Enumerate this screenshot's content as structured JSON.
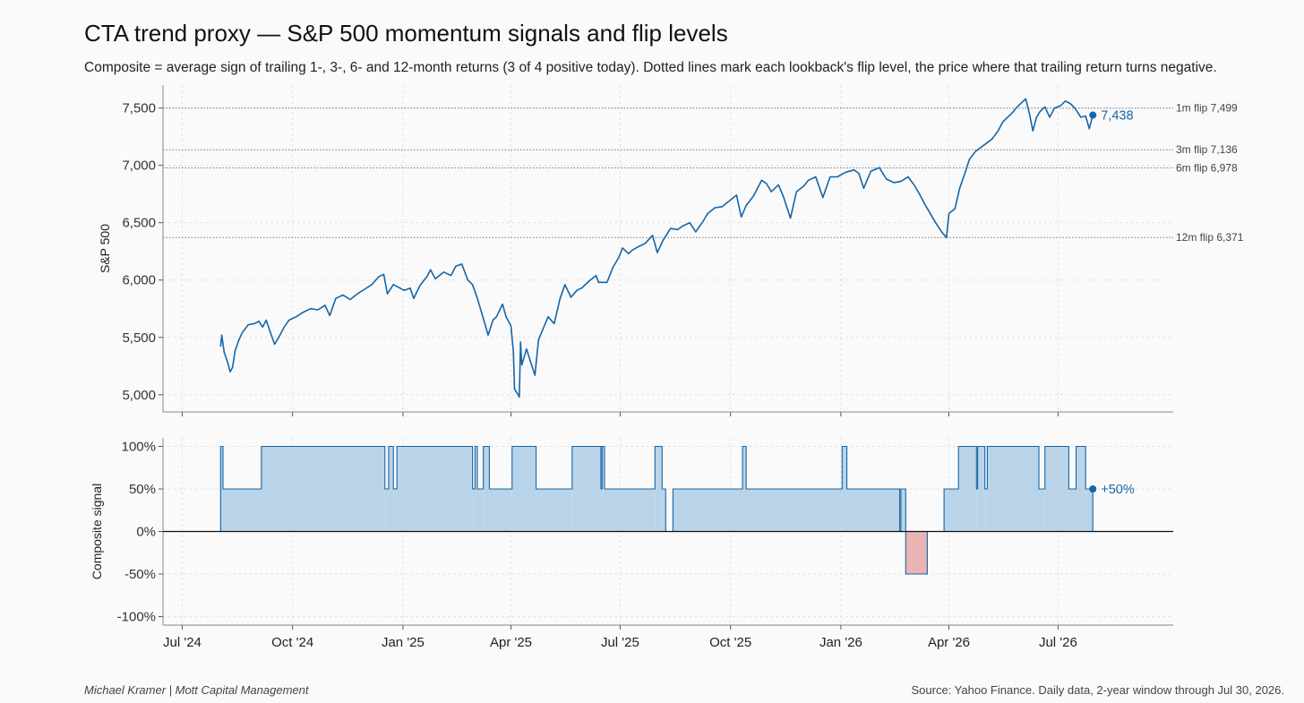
{
  "title": "CTA trend proxy — S&P 500 momentum signals and flip levels",
  "subtitle": "Composite = average sign of trailing 1-, 3-, 6- and 12-month returns (3 of 4 positive today). Dotted lines mark each lookback's flip level, the price where that trailing return turns negative.",
  "footer_left": "Michael Kramer  |  Mott Capital Management",
  "footer_right": "Source: Yahoo Finance. Daily data, 2-year window through Jul 30, 2026.",
  "colors": {
    "line": "#1565a8",
    "positive_fill": "#b9d4e8",
    "negative_fill": "#eab4b4",
    "grid": "#e3e3e3",
    "flip_line": "#777777"
  },
  "chart_data": [
    {
      "type": "line",
      "ylabel": "S&P 500",
      "ylim": [
        4850,
        7700
      ],
      "yticks": [
        "5,000",
        "5,500",
        "6,000",
        "6,500",
        "7,000",
        "7,500"
      ],
      "ytick_values": [
        5000,
        5500,
        6000,
        6500,
        7000,
        7500
      ],
      "series": [
        {
          "values": [
            [
              "2024-08-02",
              5420
            ],
            [
              "2024-08-03",
              5520
            ],
            [
              "2024-08-05",
              5370
            ],
            [
              "2024-08-08",
              5280
            ],
            [
              "2024-08-10",
              5200
            ],
            [
              "2024-08-12",
              5240
            ],
            [
              "2024-08-14",
              5380
            ],
            [
              "2024-08-17",
              5470
            ],
            [
              "2024-08-20",
              5540
            ],
            [
              "2024-08-25",
              5610
            ],
            [
              "2024-08-30",
              5620
            ],
            [
              "2024-09-03",
              5640
            ],
            [
              "2024-09-06",
              5590
            ],
            [
              "2024-09-09",
              5650
            ],
            [
              "2024-09-12",
              5560
            ],
            [
              "2024-09-16",
              5440
            ],
            [
              "2024-09-20",
              5510
            ],
            [
              "2024-09-24",
              5590
            ],
            [
              "2024-09-28",
              5650
            ],
            [
              "2024-10-04",
              5680
            ],
            [
              "2024-10-10",
              5720
            ],
            [
              "2024-10-16",
              5750
            ],
            [
              "2024-10-22",
              5740
            ],
            [
              "2024-10-28",
              5780
            ],
            [
              "2024-11-01",
              5690
            ],
            [
              "2024-11-06",
              5840
            ],
            [
              "2024-11-12",
              5870
            ],
            [
              "2024-11-18",
              5830
            ],
            [
              "2024-11-24",
              5880
            ],
            [
              "2024-11-30",
              5920
            ],
            [
              "2024-12-06",
              5960
            ],
            [
              "2024-12-12",
              6030
            ],
            [
              "2024-12-16",
              6050
            ],
            [
              "2024-12-19",
              5880
            ],
            [
              "2024-12-24",
              5960
            ],
            [
              "2025-01-02",
              5910
            ],
            [
              "2025-01-07",
              5930
            ],
            [
              "2025-01-10",
              5840
            ],
            [
              "2025-01-15",
              5950
            ],
            [
              "2025-01-21",
              6030
            ],
            [
              "2025-01-24",
              6090
            ],
            [
              "2025-01-28",
              6010
            ],
            [
              "2025-02-04",
              6070
            ],
            [
              "2025-02-10",
              6040
            ],
            [
              "2025-02-14",
              6120
            ],
            [
              "2025-02-19",
              6140
            ],
            [
              "2025-02-24",
              6000
            ],
            [
              "2025-02-28",
              5960
            ],
            [
              "2025-03-04",
              5840
            ],
            [
              "2025-03-10",
              5630
            ],
            [
              "2025-03-13",
              5520
            ],
            [
              "2025-03-17",
              5650
            ],
            [
              "2025-03-20",
              5680
            ],
            [
              "2025-03-25",
              5790
            ],
            [
              "2025-03-28",
              5680
            ],
            [
              "2025-04-01",
              5600
            ],
            [
              "2025-04-03",
              5380
            ],
            [
              "2025-04-04",
              5050
            ],
            [
              "2025-04-07",
              5000
            ],
            [
              "2025-04-08",
              4980
            ],
            [
              "2025-04-09",
              5460
            ],
            [
              "2025-04-10",
              5260
            ],
            [
              "2025-04-14",
              5400
            ],
            [
              "2025-04-17",
              5300
            ],
            [
              "2025-04-21",
              5170
            ],
            [
              "2025-04-24",
              5480
            ],
            [
              "2025-04-28",
              5580
            ],
            [
              "2025-05-02",
              5680
            ],
            [
              "2025-05-07",
              5620
            ],
            [
              "2025-05-12",
              5840
            ],
            [
              "2025-05-16",
              5960
            ],
            [
              "2025-05-21",
              5850
            ],
            [
              "2025-05-26",
              5910
            ],
            [
              "2025-05-30",
              5930
            ],
            [
              "2025-06-05",
              5990
            ],
            [
              "2025-06-11",
              6040
            ],
            [
              "2025-06-13",
              5980
            ],
            [
              "2025-06-20",
              5980
            ],
            [
              "2025-06-25",
              6110
            ],
            [
              "2025-06-30",
              6200
            ],
            [
              "2025-07-03",
              6280
            ],
            [
              "2025-07-08",
              6230
            ],
            [
              "2025-07-11",
              6260
            ],
            [
              "2025-07-16",
              6290
            ],
            [
              "2025-07-22",
              6320
            ],
            [
              "2025-07-28",
              6390
            ],
            [
              "2025-08-01",
              6240
            ],
            [
              "2025-08-06",
              6350
            ],
            [
              "2025-08-12",
              6450
            ],
            [
              "2025-08-18",
              6440
            ],
            [
              "2025-08-22",
              6470
            ],
            [
              "2025-08-28",
              6500
            ],
            [
              "2025-09-02",
              6420
            ],
            [
              "2025-09-08",
              6510
            ],
            [
              "2025-09-12",
              6580
            ],
            [
              "2025-09-18",
              6630
            ],
            [
              "2025-09-24",
              6640
            ],
            [
              "2025-09-30",
              6690
            ],
            [
              "2025-10-06",
              6740
            ],
            [
              "2025-10-10",
              6550
            ],
            [
              "2025-10-14",
              6650
            ],
            [
              "2025-10-20",
              6730
            ],
            [
              "2025-10-27",
              6870
            ],
            [
              "2025-10-31",
              6840
            ],
            [
              "2025-11-04",
              6770
            ],
            [
              "2025-11-10",
              6830
            ],
            [
              "2025-11-14",
              6730
            ],
            [
              "2025-11-20",
              6540
            ],
            [
              "2025-11-25",
              6770
            ],
            [
              "2025-12-01",
              6820
            ],
            [
              "2025-12-05",
              6870
            ],
            [
              "2025-12-11",
              6900
            ],
            [
              "2025-12-17",
              6720
            ],
            [
              "2025-12-23",
              6900
            ],
            [
              "2025-12-29",
              6900
            ],
            [
              "2026-01-05",
              6940
            ],
            [
              "2026-01-12",
              6960
            ],
            [
              "2026-01-16",
              6930
            ],
            [
              "2026-01-20",
              6800
            ],
            [
              "2026-01-26",
              6950
            ],
            [
              "2026-02-02",
              6980
            ],
            [
              "2026-02-08",
              6880
            ],
            [
              "2026-02-14",
              6850
            ],
            [
              "2026-02-20",
              6860
            ],
            [
              "2026-02-26",
              6900
            ],
            [
              "2026-03-03",
              6830
            ],
            [
              "2026-03-08",
              6740
            ],
            [
              "2026-03-12",
              6660
            ],
            [
              "2026-03-17",
              6570
            ],
            [
              "2026-03-21",
              6500
            ],
            [
              "2026-03-26",
              6420
            ],
            [
              "2026-03-30",
              6370
            ],
            [
              "2026-04-01",
              6580
            ],
            [
              "2026-04-06",
              6620
            ],
            [
              "2026-04-10",
              6800
            ],
            [
              "2026-04-14",
              6920
            ],
            [
              "2026-04-18",
              7050
            ],
            [
              "2026-04-23",
              7120
            ],
            [
              "2026-04-28",
              7160
            ],
            [
              "2026-05-02",
              7190
            ],
            [
              "2026-05-07",
              7230
            ],
            [
              "2026-05-12",
              7300
            ],
            [
              "2026-05-16",
              7380
            ],
            [
              "2026-05-20",
              7420
            ],
            [
              "2026-05-24",
              7460
            ],
            [
              "2026-05-28",
              7510
            ],
            [
              "2026-06-01",
              7550
            ],
            [
              "2026-06-04",
              7580
            ],
            [
              "2026-06-07",
              7460
            ],
            [
              "2026-06-10",
              7300
            ],
            [
              "2026-06-13",
              7420
            ],
            [
              "2026-06-16",
              7470
            ],
            [
              "2026-06-20",
              7510
            ],
            [
              "2026-06-24",
              7420
            ],
            [
              "2026-06-28",
              7500
            ],
            [
              "2026-07-03",
              7520
            ],
            [
              "2026-07-07",
              7560
            ],
            [
              "2026-07-11",
              7540
            ],
            [
              "2026-07-15",
              7500
            ],
            [
              "2026-07-20",
              7420
            ],
            [
              "2026-07-24",
              7430
            ],
            [
              "2026-07-27",
              7320
            ],
            [
              "2026-07-30",
              7438
            ]
          ]
        }
      ],
      "flip_levels": [
        {
          "label": "1m flip 7,499",
          "value": 7499
        },
        {
          "label": "3m flip 7,136",
          "value": 7136
        },
        {
          "label": "6m flip 6,978",
          "value": 6978
        },
        {
          "label": "12m flip 6,371",
          "value": 6371
        }
      ],
      "end_label": "7,438",
      "end_value": 7438,
      "end_date": "2026-07-30",
      "grid": true,
      "xlim": [
        "2024-06-15",
        "2026-10-05"
      ]
    },
    {
      "type": "area",
      "ylabel": "Composite signal",
      "ylim": [
        -110,
        110
      ],
      "yticks": [
        "100%",
        "50%",
        "0%",
        "-50%",
        "-100%"
      ],
      "ytick_values": [
        100,
        50,
        0,
        -50,
        -100
      ],
      "series": [
        {
          "values": [
            [
              "2024-08-02",
              100
            ],
            [
              "2024-08-04",
              50
            ],
            [
              "2024-09-05",
              100
            ],
            [
              "2024-12-17",
              50
            ],
            [
              "2024-12-20",
              100
            ],
            [
              "2024-12-24",
              50
            ],
            [
              "2024-12-27",
              100
            ],
            [
              "2025-02-28",
              50
            ],
            [
              "2025-03-02",
              100
            ],
            [
              "2025-03-04",
              50
            ],
            [
              "2025-03-09",
              100
            ],
            [
              "2025-03-14",
              50
            ],
            [
              "2025-04-02",
              100
            ],
            [
              "2025-04-22",
              50
            ],
            [
              "2025-05-22",
              100
            ],
            [
              "2025-06-15",
              50
            ],
            [
              "2025-06-16",
              100
            ],
            [
              "2025-06-18",
              50
            ],
            [
              "2025-07-30",
              100
            ],
            [
              "2025-08-05",
              50
            ],
            [
              "2025-08-08",
              0
            ],
            [
              "2025-08-14",
              50
            ],
            [
              "2025-10-11",
              100
            ],
            [
              "2025-10-14",
              50
            ],
            [
              "2026-01-02",
              100
            ],
            [
              "2026-01-06",
              50
            ],
            [
              "2026-02-19",
              0
            ],
            [
              "2026-02-20",
              50
            ],
            [
              "2026-02-24",
              -50
            ],
            [
              "2026-03-14",
              0
            ],
            [
              "2026-03-28",
              50
            ],
            [
              "2026-04-06",
              50
            ],
            [
              "2026-04-09",
              100
            ],
            [
              "2026-04-24",
              50
            ],
            [
              "2026-04-25",
              100
            ],
            [
              "2026-05-01",
              50
            ],
            [
              "2026-05-03",
              100
            ],
            [
              "2026-06-15",
              50
            ],
            [
              "2026-06-20",
              100
            ],
            [
              "2026-07-10",
              50
            ],
            [
              "2026-07-16",
              100
            ],
            [
              "2026-07-24",
              50
            ],
            [
              "2026-07-30",
              50
            ]
          ]
        }
      ],
      "end_label": "+50%",
      "end_value": 50,
      "end_date": "2026-07-30",
      "grid": true,
      "xlim": [
        "2024-06-15",
        "2026-10-05"
      ]
    }
  ],
  "x_axis": {
    "ticks": [
      {
        "label": "Jul '24",
        "date": "2024-07-01"
      },
      {
        "label": "Oct '24",
        "date": "2024-10-01"
      },
      {
        "label": "Jan '25",
        "date": "2025-01-01"
      },
      {
        "label": "Apr '25",
        "date": "2025-04-01"
      },
      {
        "label": "Jul '25",
        "date": "2025-07-01"
      },
      {
        "label": "Oct '25",
        "date": "2025-10-01"
      },
      {
        "label": "Jan '26",
        "date": "2026-01-01"
      },
      {
        "label": "Apr '26",
        "date": "2026-04-01"
      },
      {
        "label": "Jul '26",
        "date": "2026-07-01"
      }
    ]
  }
}
